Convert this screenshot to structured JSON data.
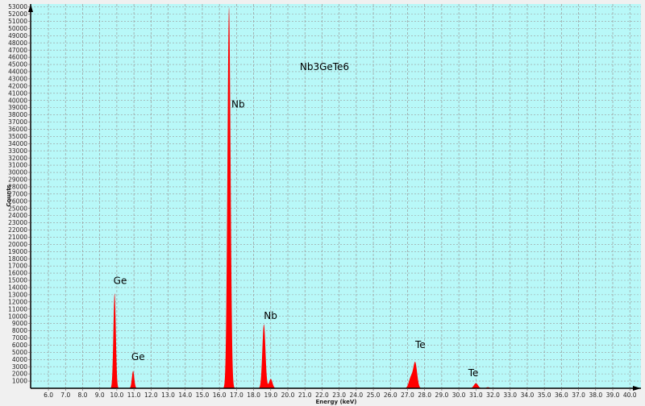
{
  "chart_data": {
    "type": "area",
    "title": "",
    "xlabel": "Energy (keV)",
    "ylabel": "Counts",
    "xlim": [
      4.96,
      40.65
    ],
    "ylim": [
      0,
      53400
    ],
    "x_ticks": [
      6.0,
      7.0,
      8.0,
      9.0,
      10.0,
      11.0,
      12.0,
      13.0,
      14.0,
      15.0,
      16.0,
      17.0,
      18.0,
      19.0,
      20.0,
      21.0,
      22.0,
      23.0,
      24.0,
      25.0,
      26.0,
      27.0,
      28.0,
      29.0,
      30.0,
      31.0,
      32.0,
      33.0,
      34.0,
      35.0,
      36.0,
      37.0,
      38.0,
      39.0,
      40.0
    ],
    "y_tick_step": 1000,
    "y_tick_max": 53000,
    "grid": true,
    "colors": {
      "background": "#b8f8f8",
      "spectrum": "#ff0000",
      "grid": "#9a9a9a"
    },
    "peaks": [
      {
        "energy": 9.87,
        "counts": 13200,
        "sigma": 0.07
      },
      {
        "energy": 10.95,
        "counts": 2400,
        "sigma": 0.07
      },
      {
        "energy": 16.56,
        "counts": 53000,
        "sigma": 0.09
      },
      {
        "energy": 18.6,
        "counts": 8900,
        "sigma": 0.09
      },
      {
        "energy": 19.0,
        "counts": 1300,
        "sigma": 0.1
      },
      {
        "energy": 27.2,
        "counts": 1500,
        "sigma": 0.12
      },
      {
        "energy": 27.45,
        "counts": 3500,
        "sigma": 0.11
      },
      {
        "energy": 31.0,
        "counts": 700,
        "sigma": 0.12
      },
      {
        "energy": 31.7,
        "counts": 150,
        "sigma": 0.1
      }
    ],
    "annotations": [
      {
        "text": "Nb3GeTe6",
        "x": 20.7,
        "y": 44200
      },
      {
        "text": "Ge",
        "x": 9.8,
        "y": 14500
      },
      {
        "text": "Ge",
        "x": 10.85,
        "y": 3900
      },
      {
        "text": "Nb",
        "x": 16.7,
        "y": 39000
      },
      {
        "text": "Nb",
        "x": 18.6,
        "y": 9600
      },
      {
        "text": "Te",
        "x": 27.45,
        "y": 5600
      },
      {
        "text": "Te",
        "x": 30.55,
        "y": 1700
      }
    ]
  }
}
